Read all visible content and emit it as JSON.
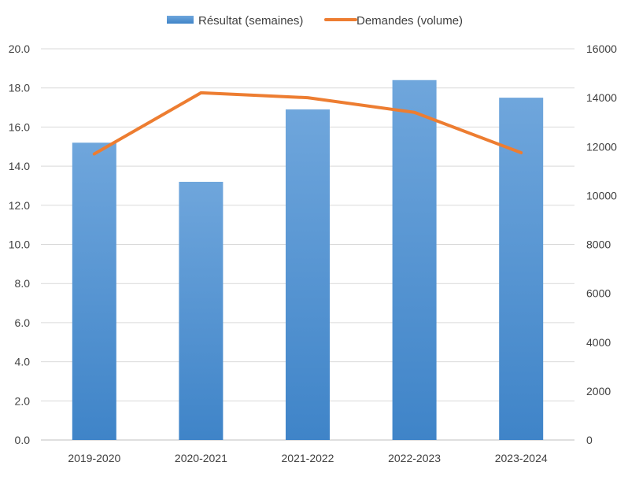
{
  "chart_data": {
    "type": "bar",
    "categories": [
      "2019-2020",
      "2020-2021",
      "2021-2022",
      "2022-2023",
      "2023-2024"
    ],
    "series": [
      {
        "name": "Résultat (semaines)",
        "kind": "bar",
        "axis": "left",
        "values": [
          15.2,
          13.2,
          16.9,
          18.4,
          17.5
        ],
        "color": "#5b9bd5"
      },
      {
        "name": "Demandes (volume)",
        "kind": "line",
        "axis": "right",
        "values": [
          11700,
          14200,
          14000,
          13400,
          11750
        ],
        "color": "#ed7d31"
      }
    ],
    "y_left": {
      "range": [
        0,
        20
      ],
      "ticks": [
        "0.0",
        "2.0",
        "4.0",
        "6.0",
        "8.0",
        "10.0",
        "12.0",
        "14.0",
        "16.0",
        "18.0",
        "20.0"
      ]
    },
    "y_right": {
      "range": [
        0,
        16000
      ],
      "ticks": [
        "0",
        "2000",
        "4000",
        "6000",
        "8000",
        "10000",
        "12000",
        "14000",
        "16000"
      ]
    },
    "grid": true,
    "legend_position": "top-center",
    "colors": {
      "gridline": "#d9d9d9",
      "text": "#404040"
    }
  }
}
